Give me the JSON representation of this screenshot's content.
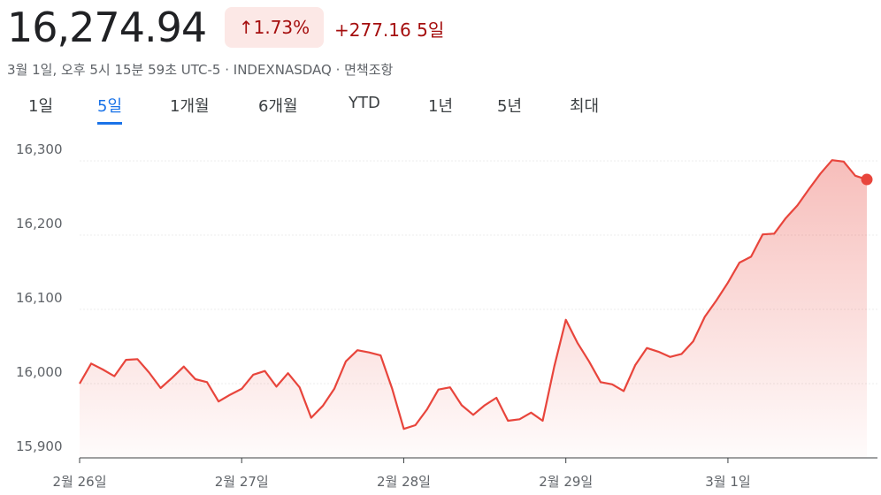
{
  "header": {
    "price": "16,274.94",
    "change_percent": "1.73%",
    "change": "+277.16",
    "period": "5일",
    "subtitle": "3월 1일, 오후 5시 15분 59초 UTC-5 · INDEXNASDAQ · 면책조항"
  },
  "tabs": [
    "1일",
    "5일",
    "1개월",
    "6개월",
    "YTD",
    "1년",
    "5년",
    "최대"
  ],
  "selected_tab": 1,
  "chart_data": {
    "type": "line",
    "color": "#e8453c",
    "categories": [
      "2월 26일",
      null,
      null,
      null,
      null,
      null,
      null,
      null,
      null,
      null,
      null,
      null,
      null,
      null,
      "2월 27일",
      null,
      null,
      null,
      null,
      null,
      null,
      null,
      null,
      null,
      null,
      null,
      null,
      null,
      "2월 28일",
      null,
      null,
      null,
      null,
      null,
      null,
      null,
      null,
      null,
      null,
      null,
      null,
      null,
      "2월 29일",
      null,
      null,
      null,
      null,
      null,
      null,
      null,
      null,
      null,
      null,
      null,
      null,
      null,
      "3월 1일",
      null,
      null,
      null,
      null,
      null,
      null,
      null,
      null,
      null,
      null,
      null,
      null
    ],
    "values": [
      16000,
      16027,
      16019,
      16010,
      16032,
      16033,
      16015,
      15994,
      16008,
      16023,
      16006,
      16002,
      15976,
      15985,
      15993,
      16012,
      16017,
      15996,
      16014,
      15995,
      15954,
      15970,
      15993,
      16030,
      16045,
      16042,
      16038,
      15993,
      15939,
      15944,
      15965,
      15992,
      15995,
      15971,
      15958,
      15971,
      15981,
      15950,
      15952,
      15961,
      15950,
      16023,
      16086,
      16055,
      16030,
      16002,
      15999,
      15990,
      16025,
      16048,
      16043,
      16036,
      16040,
      16057,
      16090,
      16112,
      16136,
      16163,
      16171,
      16201,
      16202,
      16223,
      16240,
      16262,
      16283,
      16301,
      16299,
      16280,
      16274.94
    ],
    "ylim": [
      15900,
      16300
    ],
    "yticks": [
      {
        "value": 15900,
        "label": "15,900"
      },
      {
        "value": 16000,
        "label": "16,000"
      },
      {
        "value": 16100,
        "label": "16,100"
      },
      {
        "value": 16200,
        "label": "16,200"
      },
      {
        "value": 16300,
        "label": "16,300"
      }
    ],
    "grid": true
  }
}
